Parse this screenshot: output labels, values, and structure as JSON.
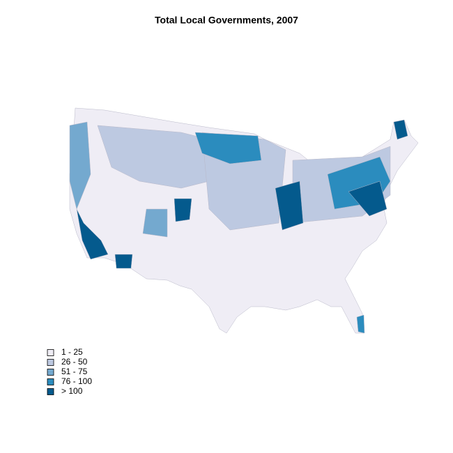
{
  "title": "Total Local Governments, 2007",
  "legend": {
    "items": [
      {
        "label": "1 - 25",
        "color": "#efedf5"
      },
      {
        "label": "26 - 50",
        "color": "#bdc9e1"
      },
      {
        "label": "51 - 75",
        "color": "#74a9cf"
      },
      {
        "label": "76 - 100",
        "color": "#2b8cbe"
      },
      {
        "label": "> 100",
        "color": "#045a8d"
      }
    ]
  }
}
